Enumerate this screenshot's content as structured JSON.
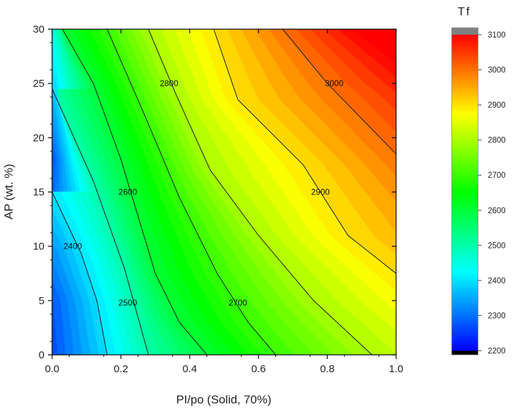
{
  "chart_data": {
    "type": "heatmap",
    "title": "",
    "xlabel": "PI/po (Solid, 70%)",
    "ylabel": "AP (wt. %)",
    "xlim": [
      0.0,
      1.0
    ],
    "ylim": [
      0,
      30
    ],
    "x_ticks": [
      "0.0",
      "0.2",
      "0.4",
      "0.6",
      "0.8",
      "1.0"
    ],
    "y_ticks": [
      "0",
      "5",
      "10",
      "15",
      "20",
      "25",
      "30"
    ],
    "colorbar": {
      "title": "Tf",
      "range": [
        2200,
        3100
      ],
      "ticks": [
        "2200",
        "2300",
        "2400",
        "2500",
        "2600",
        "2700",
        "2800",
        "2900",
        "3000",
        "3100"
      ],
      "colors": [
        "#0000ff",
        "#00ffff",
        "#00ff00",
        "#ffff00",
        "#ff0000"
      ],
      "under_color": "#000000",
      "over_color": "#808080"
    },
    "contours": [
      {
        "level": 2400,
        "label": "2400",
        "label_at": [
          0.06,
          10
        ],
        "points": [
          [
            0.0,
            15.0
          ],
          [
            0.085,
            9.3
          ],
          [
            0.13,
            5.0
          ],
          [
            0.16,
            0.0
          ]
        ]
      },
      {
        "level": 2500,
        "label": "2500",
        "label_at": [
          0.22,
          4.8
        ],
        "points": [
          [
            0.0,
            24.5
          ],
          [
            0.12,
            16.0
          ],
          [
            0.21,
            8.0
          ],
          [
            0.28,
            0.0
          ]
        ]
      },
      {
        "level": 2600,
        "label": "2600",
        "label_at": [
          0.22,
          15
        ],
        "points": [
          [
            0.03,
            30.0
          ],
          [
            0.12,
            25.0
          ],
          [
            0.2,
            18.0
          ],
          [
            0.3,
            7.5
          ],
          [
            0.37,
            3.0
          ],
          [
            0.45,
            0.0
          ]
        ]
      },
      {
        "level": 2700,
        "label": "2700",
        "label_at": [
          0.54,
          4.8
        ],
        "points": [
          [
            0.16,
            30.0
          ],
          [
            0.27,
            22.0
          ],
          [
            0.37,
            14.5
          ],
          [
            0.48,
            7.5
          ],
          [
            0.57,
            3.0
          ],
          [
            0.65,
            0.0
          ]
        ]
      },
      {
        "level": 2800,
        "label": "2800",
        "label_at": [
          0.34,
          25
        ],
        "points": [
          [
            0.28,
            30.0
          ],
          [
            0.36,
            24.0
          ],
          [
            0.46,
            17.0
          ],
          [
            0.6,
            11.0
          ],
          [
            0.76,
            5.0
          ],
          [
            0.93,
            0.0
          ]
        ]
      },
      {
        "level": 2900,
        "label": "2900",
        "label_at": [
          0.78,
          15
        ],
        "points": [
          [
            0.47,
            30.0
          ],
          [
            0.54,
            23.5
          ],
          [
            0.73,
            17.5
          ],
          [
            0.86,
            11.0
          ],
          [
            1.0,
            7.5
          ]
        ]
      },
      {
        "level": 3000,
        "label": "3000",
        "label_at": [
          0.82,
          25
        ],
        "points": [
          [
            0.67,
            30.0
          ],
          [
            0.8,
            25.0
          ],
          [
            1.0,
            18.5
          ]
        ]
      }
    ]
  }
}
